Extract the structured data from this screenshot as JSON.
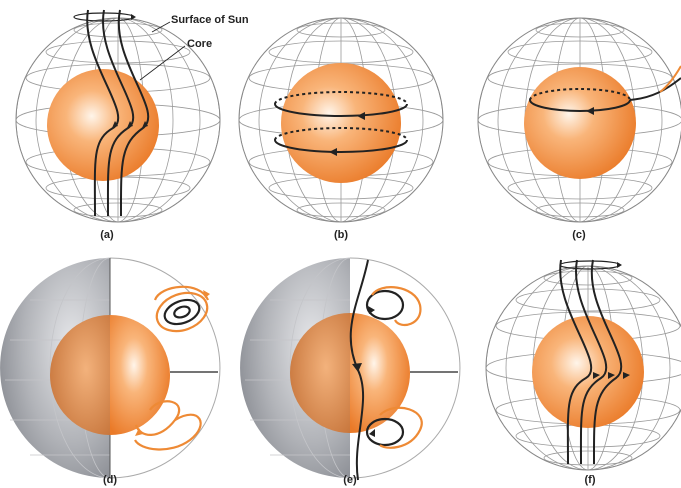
{
  "labels": {
    "surface": "Surface of Sun",
    "core": "Core"
  },
  "panels": [
    {
      "id": "a",
      "label": "(a)"
    },
    {
      "id": "b",
      "label": "(b)"
    },
    {
      "id": "c",
      "label": "(c)"
    },
    {
      "id": "d",
      "label": "(d)"
    },
    {
      "id": "e",
      "label": "(e)"
    },
    {
      "id": "f",
      "label": "(f)"
    }
  ],
  "colors": {
    "core": "#f08a3c",
    "core_light": "#fff3e6",
    "field_line": "#222222",
    "loop_orange": "#ee8a35",
    "grid": "#9a9a9a",
    "shaded_half": "#9ea0a6"
  }
}
